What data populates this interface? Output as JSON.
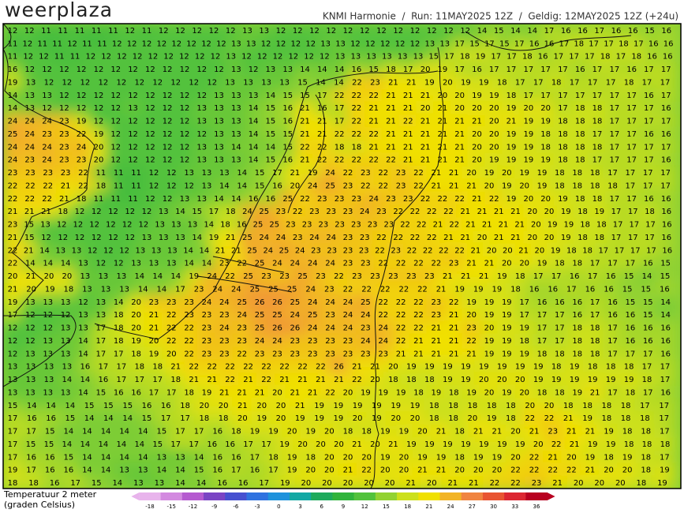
{
  "header": {
    "logo": "weerplaza",
    "info": "KNMI Harmonie  /  Run: 11MAY2025 12Z  /  Geldig: 12MAY2025 12Z (+24u)"
  },
  "map": {
    "rows": [
      [
        12,
        12,
        11,
        11,
        11,
        11,
        11,
        12,
        11,
        12,
        12,
        12,
        12,
        12,
        13,
        13,
        12,
        12,
        12,
        12,
        12,
        12,
        12,
        12,
        12,
        12,
        12,
        12,
        14,
        15,
        14,
        14,
        17,
        16,
        16,
        17,
        16,
        16,
        15,
        16
      ],
      [
        11,
        12,
        11,
        11,
        12,
        11,
        11,
        12,
        12,
        12,
        12,
        12,
        12,
        12,
        12,
        13,
        13,
        12,
        12,
        12,
        12,
        13,
        13,
        12,
        12,
        12,
        12,
        12,
        13,
        13,
        17,
        15,
        17,
        15,
        17,
        16,
        16,
        17,
        18,
        17,
        17,
        18,
        17,
        16,
        16
      ],
      [
        11,
        12,
        12,
        11,
        11,
        12,
        12,
        12,
        12,
        12,
        12,
        12,
        12,
        12,
        13,
        12,
        12,
        12,
        12,
        12,
        12,
        13,
        13,
        13,
        13,
        13,
        13,
        15,
        17,
        18,
        19,
        17,
        17,
        18,
        16,
        17,
        17,
        17,
        18,
        17,
        18,
        16,
        16
      ],
      [
        16,
        12,
        12,
        12,
        12,
        12,
        12,
        12,
        12,
        12,
        12,
        12,
        12,
        13,
        12,
        13,
        13,
        14,
        14,
        14,
        16,
        15,
        18,
        17,
        20,
        19,
        17,
        16,
        17,
        17,
        17,
        17,
        17,
        16,
        17,
        17,
        16,
        17,
        17
      ],
      [
        19,
        13,
        12,
        12,
        12,
        12,
        12,
        12,
        12,
        12,
        12,
        12,
        13,
        13,
        13,
        13,
        15,
        14,
        14,
        22,
        23,
        21,
        21,
        19,
        20,
        19,
        19,
        18,
        17,
        17,
        18,
        17,
        17,
        17,
        18,
        17,
        17
      ],
      [
        14,
        13,
        13,
        12,
        12,
        12,
        12,
        12,
        12,
        12,
        12,
        12,
        13,
        13,
        13,
        14,
        15,
        15,
        17,
        22,
        22,
        22,
        21,
        21,
        21,
        20,
        20,
        19,
        19,
        18,
        17,
        17,
        17,
        17,
        17,
        17,
        17,
        16,
        17
      ],
      [
        14,
        13,
        12,
        12,
        12,
        12,
        12,
        13,
        12,
        12,
        12,
        13,
        13,
        13,
        14,
        15,
        16,
        21,
        16,
        17,
        22,
        21,
        21,
        21,
        20,
        21,
        20,
        20,
        20,
        19,
        20,
        20,
        17,
        18,
        18,
        17,
        17,
        17,
        16
      ],
      [
        24,
        24,
        24,
        23,
        19,
        12,
        12,
        12,
        12,
        12,
        12,
        13,
        13,
        13,
        14,
        15,
        16,
        21,
        21,
        17,
        22,
        21,
        21,
        22,
        21,
        21,
        21,
        21,
        20,
        21,
        19,
        19,
        18,
        18,
        18,
        17,
        17,
        17,
        17
      ],
      [
        25,
        24,
        23,
        23,
        22,
        19,
        12,
        12,
        12,
        12,
        12,
        12,
        13,
        13,
        14,
        15,
        15,
        21,
        21,
        22,
        22,
        22,
        21,
        21,
        21,
        21,
        21,
        20,
        20,
        19,
        19,
        18,
        18,
        18,
        17,
        17,
        17,
        16,
        16
      ],
      [
        24,
        24,
        24,
        23,
        24,
        20,
        12,
        12,
        12,
        12,
        12,
        13,
        13,
        14,
        14,
        14,
        15,
        22,
        22,
        18,
        18,
        21,
        21,
        21,
        21,
        21,
        21,
        20,
        20,
        19,
        19,
        18,
        18,
        18,
        18,
        17,
        17,
        17,
        17
      ],
      [
        24,
        23,
        24,
        23,
        23,
        20,
        12,
        12,
        12,
        12,
        12,
        13,
        13,
        13,
        14,
        15,
        16,
        21,
        22,
        22,
        22,
        22,
        22,
        21,
        21,
        21,
        21,
        20,
        19,
        19,
        19,
        19,
        18,
        18,
        17,
        17,
        17,
        17,
        16
      ],
      [
        23,
        23,
        23,
        23,
        22,
        11,
        11,
        11,
        12,
        12,
        13,
        13,
        13,
        14,
        15,
        17,
        21,
        19,
        24,
        22,
        23,
        22,
        23,
        22,
        21,
        21,
        20,
        19,
        20,
        19,
        19,
        18,
        18,
        18,
        17,
        17,
        17,
        17
      ],
      [
        22,
        22,
        22,
        21,
        22,
        18,
        11,
        11,
        12,
        12,
        12,
        13,
        14,
        14,
        15,
        16,
        20,
        24,
        25,
        23,
        22,
        22,
        23,
        22,
        21,
        21,
        21,
        20,
        19,
        20,
        19,
        18,
        18,
        18,
        18,
        17,
        17,
        17
      ],
      [
        22,
        22,
        22,
        21,
        18,
        11,
        11,
        11,
        12,
        12,
        13,
        13,
        14,
        14,
        16,
        16,
        25,
        22,
        23,
        23,
        23,
        24,
        23,
        23,
        22,
        22,
        22,
        21,
        22,
        19,
        20,
        20,
        19,
        18,
        18,
        17,
        17,
        16,
        16
      ],
      [
        21,
        21,
        21,
        18,
        12,
        12,
        12,
        12,
        12,
        13,
        14,
        15,
        17,
        18,
        24,
        25,
        23,
        22,
        23,
        23,
        23,
        24,
        23,
        22,
        22,
        22,
        22,
        21,
        21,
        21,
        21,
        20,
        20,
        19,
        18,
        19,
        17,
        17,
        18,
        16
      ],
      [
        23,
        15,
        13,
        12,
        12,
        12,
        12,
        12,
        12,
        13,
        13,
        13,
        14,
        18,
        16,
        25,
        25,
        23,
        23,
        23,
        23,
        23,
        23,
        23,
        22,
        22,
        21,
        22,
        21,
        21,
        21,
        21,
        20,
        19,
        19,
        18,
        18,
        17,
        17,
        17,
        16
      ],
      [
        21,
        15,
        12,
        12,
        12,
        12,
        12,
        12,
        13,
        13,
        13,
        14,
        19,
        21,
        25,
        24,
        24,
        23,
        24,
        24,
        23,
        23,
        22,
        22,
        22,
        22,
        21,
        21,
        20,
        21,
        21,
        20,
        20,
        19,
        18,
        18,
        17,
        17,
        17,
        16
      ],
      [
        22,
        21,
        14,
        13,
        13,
        12,
        12,
        12,
        13,
        13,
        13,
        14,
        14,
        21,
        21,
        25,
        24,
        25,
        24,
        23,
        23,
        23,
        23,
        22,
        23,
        22,
        22,
        22,
        22,
        21,
        20,
        20,
        21,
        20,
        19,
        18,
        18,
        17,
        17,
        17,
        17,
        16
      ],
      [
        22,
        14,
        14,
        14,
        13,
        12,
        12,
        13,
        13,
        13,
        14,
        14,
        23,
        22,
        25,
        24,
        24,
        24,
        24,
        23,
        23,
        22,
        22,
        22,
        22,
        23,
        21,
        21,
        20,
        20,
        19,
        18,
        18,
        17,
        17,
        17,
        16,
        15
      ],
      [
        20,
        21,
        20,
        20,
        13,
        13,
        13,
        14,
        14,
        14,
        19,
        24,
        22,
        25,
        23,
        23,
        25,
        23,
        22,
        23,
        23,
        23,
        23,
        23,
        21,
        21,
        21,
        19,
        18,
        17,
        17,
        16,
        17,
        16,
        15,
        14,
        15
      ],
      [
        21,
        20,
        19,
        18,
        13,
        13,
        13,
        14,
        14,
        17,
        23,
        24,
        24,
        25,
        25,
        25,
        24,
        23,
        22,
        22,
        22,
        22,
        22,
        21,
        19,
        19,
        19,
        18,
        16,
        16,
        17,
        16,
        16,
        15,
        15,
        16
      ],
      [
        19,
        13,
        13,
        13,
        12,
        13,
        14,
        20,
        23,
        23,
        23,
        24,
        24,
        25,
        26,
        26,
        25,
        24,
        24,
        24,
        25,
        22,
        22,
        22,
        23,
        22,
        19,
        19,
        19,
        17,
        16,
        16,
        16,
        17,
        16,
        15,
        15,
        14
      ],
      [
        17,
        12,
        12,
        12,
        13,
        13,
        18,
        20,
        21,
        22,
        23,
        23,
        23,
        24,
        25,
        25,
        24,
        25,
        23,
        24,
        24,
        22,
        22,
        22,
        23,
        21,
        20,
        19,
        19,
        17,
        17,
        17,
        16,
        17,
        16,
        16,
        15,
        14
      ],
      [
        12,
        12,
        12,
        13,
        13,
        17,
        18,
        20,
        21,
        22,
        22,
        23,
        24,
        23,
        25,
        26,
        26,
        24,
        24,
        24,
        23,
        24,
        22,
        22,
        21,
        21,
        23,
        20,
        19,
        19,
        17,
        17,
        18,
        18,
        17,
        16,
        16,
        16
      ],
      [
        12,
        12,
        13,
        13,
        14,
        17,
        18,
        19,
        20,
        22,
        22,
        23,
        23,
        23,
        24,
        24,
        23,
        23,
        23,
        23,
        24,
        24,
        22,
        21,
        21,
        21,
        22,
        19,
        19,
        18,
        17,
        17,
        18,
        18,
        17,
        16,
        16,
        16
      ],
      [
        12,
        13,
        13,
        13,
        14,
        17,
        17,
        18,
        19,
        20,
        22,
        23,
        23,
        22,
        23,
        23,
        23,
        23,
        23,
        23,
        23,
        23,
        21,
        21,
        21,
        21,
        21,
        19,
        19,
        19,
        18,
        18,
        18,
        18,
        17,
        17,
        17,
        16
      ],
      [
        13,
        13,
        13,
        13,
        16,
        17,
        17,
        18,
        18,
        21,
        22,
        22,
        22,
        22,
        22,
        22,
        22,
        22,
        26,
        21,
        21,
        20,
        19,
        19,
        19,
        19,
        19,
        19,
        19,
        19,
        18,
        19,
        18,
        18,
        18,
        17,
        17
      ],
      [
        13,
        13,
        13,
        14,
        14,
        16,
        17,
        17,
        17,
        18,
        21,
        21,
        22,
        21,
        22,
        21,
        21,
        21,
        21,
        22,
        20,
        18,
        18,
        18,
        19,
        19,
        20,
        20,
        20,
        19,
        19,
        19,
        19,
        19,
        19,
        18,
        17
      ],
      [
        13,
        13,
        13,
        13,
        14,
        15,
        16,
        16,
        17,
        17,
        18,
        19,
        21,
        21,
        21,
        20,
        21,
        21,
        22,
        20,
        19,
        19,
        19,
        18,
        19,
        18,
        19,
        20,
        19,
        20,
        18,
        18,
        19,
        21,
        17,
        18,
        17,
        16
      ],
      [
        15,
        14,
        14,
        14,
        15,
        15,
        15,
        16,
        16,
        18,
        20,
        20,
        21,
        20,
        20,
        21,
        19,
        19,
        19,
        19,
        19,
        19,
        18,
        18,
        18,
        18,
        18,
        20,
        20,
        18,
        18,
        18,
        18,
        17,
        17
      ],
      [
        17,
        16,
        16,
        15,
        14,
        14,
        14,
        15,
        17,
        17,
        18,
        18,
        20,
        19,
        20,
        19,
        19,
        19,
        20,
        19,
        20,
        20,
        18,
        18,
        20,
        19,
        18,
        22,
        22,
        21,
        19,
        18,
        18,
        18,
        17
      ],
      [
        17,
        17,
        15,
        14,
        14,
        14,
        14,
        14,
        15,
        17,
        17,
        16,
        18,
        19,
        19,
        20,
        19,
        20,
        18,
        18,
        19,
        19,
        20,
        21,
        18,
        21,
        21,
        20,
        21,
        23,
        21,
        21,
        19,
        18,
        18,
        17
      ],
      [
        17,
        15,
        15,
        14,
        14,
        14,
        14,
        14,
        15,
        17,
        17,
        16,
        16,
        17,
        17,
        19,
        20,
        20,
        20,
        21,
        20,
        21,
        19,
        19,
        19,
        19,
        19,
        19,
        19,
        20,
        22,
        21,
        19,
        19,
        18,
        18,
        18
      ],
      [
        17,
        16,
        16,
        15,
        14,
        14,
        14,
        14,
        13,
        13,
        14,
        16,
        16,
        17,
        18,
        19,
        18,
        20,
        20,
        20,
        19,
        20,
        19,
        19,
        18,
        19,
        19,
        20,
        22,
        21,
        20,
        19,
        18,
        19,
        18,
        17
      ],
      [
        19,
        17,
        16,
        16,
        14,
        14,
        13,
        13,
        14,
        14,
        15,
        16,
        17,
        16,
        17,
        19,
        20,
        20,
        21,
        22,
        20,
        20,
        21,
        21,
        20,
        20,
        20,
        22,
        22,
        22,
        22,
        21,
        20,
        20,
        18,
        19
      ],
      [
        18,
        18,
        16,
        17,
        15,
        14,
        13,
        13,
        14,
        14,
        16,
        16,
        17,
        19,
        20,
        20,
        20,
        20,
        20,
        21,
        20,
        21,
        21,
        22,
        22,
        23,
        21,
        20,
        20,
        20,
        18,
        19
      ]
    ]
  },
  "legend": {
    "title": "Temperatuur 2 meter",
    "subtitle": "(graden Celsius)",
    "ticks": [
      {
        "value": -18,
        "color": "#e8b4ec"
      },
      {
        "value": -15,
        "color": "#d38ae0"
      },
      {
        "value": -12,
        "color": "#b55ad0"
      },
      {
        "value": -9,
        "color": "#7a44c4"
      },
      {
        "value": -6,
        "color": "#4650d0"
      },
      {
        "value": -3,
        "color": "#2f72e0"
      },
      {
        "value": 0,
        "color": "#1e92dc"
      },
      {
        "value": 3,
        "color": "#12a8a4"
      },
      {
        "value": 6,
        "color": "#1eaa5c"
      },
      {
        "value": 9,
        "color": "#30b43c"
      },
      {
        "value": 12,
        "color": "#52c23c"
      },
      {
        "value": 15,
        "color": "#92d232"
      },
      {
        "value": 18,
        "color": "#cce01c"
      },
      {
        "value": 21,
        "color": "#f0e000"
      },
      {
        "value": 24,
        "color": "#f2b426"
      },
      {
        "value": 27,
        "color": "#f08440"
      },
      {
        "value": 30,
        "color": "#e85432"
      },
      {
        "value": 33,
        "color": "#dc2632"
      },
      {
        "value": 36,
        "color": "#b80020"
      }
    ]
  }
}
